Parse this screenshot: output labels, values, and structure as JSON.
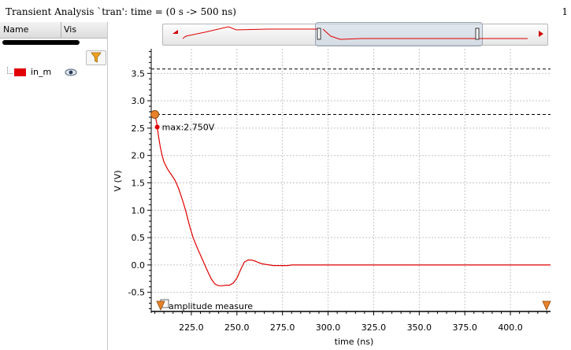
{
  "header": {
    "title": "Transient Analysis `tran': time = (0 s -> 500 ns)",
    "corner": "1"
  },
  "signal_list": {
    "columns": [
      "Name",
      "Vis"
    ],
    "items": [
      {
        "name": "in_m",
        "color": "#e00000",
        "icon": "eye-icon"
      }
    ],
    "filter_icon": "filter-icon"
  },
  "chart_data": {
    "type": "line",
    "xlabel": "time (ns)",
    "ylabel": "V (V)",
    "xlim": [
      203,
      422
    ],
    "ylim": [
      -0.85,
      3.95
    ],
    "x_ticks": [
      "225.0",
      "250.0",
      "275.0",
      "300.0",
      "325.0",
      "350.0",
      "375.0",
      "400.0"
    ],
    "y_ticks": [
      "-0.5",
      "0.0",
      "0.5",
      "1.0",
      "1.5",
      "2.0",
      "2.5",
      "3.0",
      "3.5"
    ],
    "grid": true,
    "series": [
      {
        "name": "in_m",
        "color": "#e00000",
        "x": [
          205,
          206,
          207,
          208,
          209,
          210,
          212,
          214,
          216,
          218,
          220,
          222,
          224,
          226,
          228,
          230,
          232,
          234,
          236,
          238,
          240,
          242,
          244,
          246,
          248,
          250,
          252,
          254,
          256,
          258,
          260,
          262,
          264,
          266,
          268,
          270,
          272,
          275,
          278,
          280,
          285,
          290,
          300,
          320,
          350,
          380,
          400,
          422
        ],
        "y": [
          2.75,
          2.6,
          2.35,
          2.15,
          2.0,
          1.88,
          1.75,
          1.65,
          1.55,
          1.4,
          1.2,
          0.98,
          0.72,
          0.5,
          0.33,
          0.18,
          0.03,
          -0.12,
          -0.26,
          -0.35,
          -0.38,
          -0.38,
          -0.37,
          -0.37,
          -0.33,
          -0.24,
          -0.09,
          0.05,
          0.09,
          0.09,
          0.07,
          0.04,
          0.02,
          0.01,
          0.0,
          -0.01,
          -0.01,
          -0.01,
          -0.01,
          0.0,
          0.0,
          0.0,
          0.0,
          0.0,
          0.0,
          0.0,
          0.0,
          0.0
        ]
      }
    ],
    "annotations": [
      {
        "type": "hline",
        "y": 3.58
      },
      {
        "type": "hline",
        "y": 2.75
      },
      {
        "type": "marker",
        "x": 205,
        "y": 2.75,
        "color": "#e8822a"
      },
      {
        "type": "point",
        "x": 205,
        "y": 2.52,
        "label": "max:2.750V"
      }
    ],
    "measure_label": "amplitude measure",
    "cursor_color": "#e8822a"
  }
}
